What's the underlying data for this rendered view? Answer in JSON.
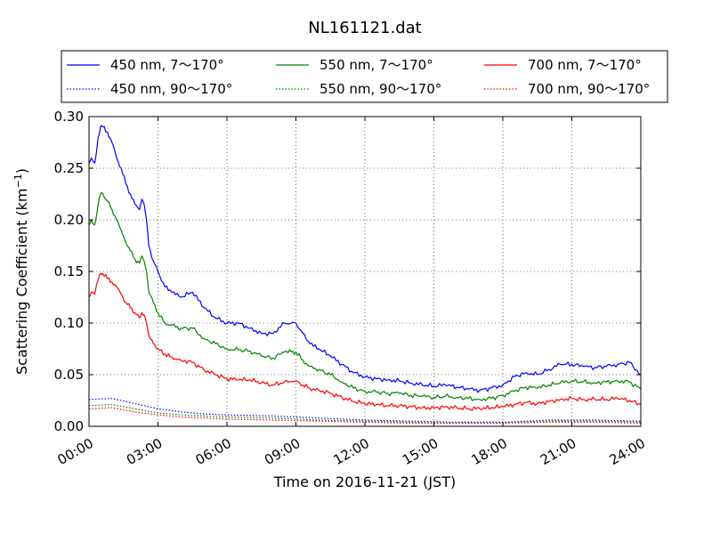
{
  "chart_data": {
    "type": "line",
    "title": "NL161121.dat",
    "xlabel": "Time on 2016-11-21 (JST)",
    "ylabel": "Scattering Coefficient (km",
    "ylabel_sup": "−1",
    "ylabel_close": ")",
    "xlim": [
      0,
      24
    ],
    "ylim": [
      0,
      0.3
    ],
    "grid": true,
    "legend_position": "top, outside plot (3 columns)",
    "x_ticks": [
      0,
      3,
      6,
      9,
      12,
      15,
      18,
      21,
      24
    ],
    "x_tick_labels": [
      "00:00",
      "03:00",
      "06:00",
      "09:00",
      "12:00",
      "15:00",
      "18:00",
      "21:00",
      "24:00"
    ],
    "y_ticks": [
      0,
      0.05,
      0.1,
      0.15,
      0.2,
      0.25,
      0.3
    ],
    "y_tick_labels": [
      "0.00",
      "0.05",
      "0.10",
      "0.15",
      "0.20",
      "0.25",
      "0.30"
    ],
    "x_unit": "hours since 00:00 JST",
    "series": [
      {
        "name": "450 nm, 7～170°",
        "color": "#0000ff",
        "style": "solid",
        "x": [
          0,
          0.1,
          0.25,
          0.4,
          0.5,
          0.6,
          0.8,
          1.0,
          1.2,
          1.4,
          1.6,
          1.8,
          2.0,
          2.2,
          2.3,
          2.4,
          2.5,
          2.6,
          2.8,
          3.0,
          3.3,
          3.6,
          4.0,
          4.5,
          5.0,
          5.5,
          6.0,
          6.5,
          7.0,
          7.5,
          8.0,
          8.5,
          8.8,
          9.0,
          9.3,
          9.6,
          10.0,
          10.5,
          11.0,
          11.5,
          12.0,
          12.5,
          13.0,
          13.5,
          14.0,
          14.5,
          15.0,
          15.5,
          16.0,
          16.5,
          17.0,
          17.5,
          18.0,
          18.5,
          19.0,
          19.5,
          20.0,
          20.5,
          21.0,
          21.5,
          22.0,
          22.5,
          23.0,
          23.5,
          24.0
        ],
        "y": [
          0.255,
          0.26,
          0.255,
          0.28,
          0.29,
          0.29,
          0.285,
          0.275,
          0.26,
          0.25,
          0.235,
          0.225,
          0.215,
          0.21,
          0.22,
          0.215,
          0.2,
          0.175,
          0.16,
          0.15,
          0.135,
          0.13,
          0.125,
          0.13,
          0.115,
          0.105,
          0.1,
          0.1,
          0.095,
          0.09,
          0.09,
          0.1,
          0.1,
          0.1,
          0.09,
          0.08,
          0.075,
          0.068,
          0.06,
          0.052,
          0.048,
          0.046,
          0.045,
          0.044,
          0.042,
          0.04,
          0.039,
          0.04,
          0.038,
          0.036,
          0.035,
          0.037,
          0.04,
          0.048,
          0.052,
          0.05,
          0.055,
          0.06,
          0.06,
          0.058,
          0.057,
          0.058,
          0.06,
          0.062,
          0.05
        ]
      },
      {
        "name": "450 nm, 90～170°",
        "color": "#0000ff",
        "style": "dotted",
        "x": [
          0,
          1,
          2,
          3,
          4,
          5,
          6,
          8,
          10,
          12,
          14,
          16,
          18,
          20,
          22,
          24
        ],
        "y": [
          0.026,
          0.027,
          0.022,
          0.017,
          0.014,
          0.012,
          0.011,
          0.01,
          0.008,
          0.006,
          0.005,
          0.004,
          0.004,
          0.006,
          0.006,
          0.005
        ]
      },
      {
        "name": "550 nm, 7～170°",
        "color": "#008000",
        "style": "solid",
        "x": [
          0,
          0.1,
          0.25,
          0.4,
          0.5,
          0.6,
          0.8,
          1.0,
          1.2,
          1.4,
          1.6,
          1.8,
          2.0,
          2.2,
          2.3,
          2.4,
          2.5,
          2.6,
          2.8,
          3.0,
          3.3,
          3.6,
          4.0,
          4.5,
          5.0,
          5.5,
          6.0,
          6.5,
          7.0,
          7.5,
          8.0,
          8.5,
          8.8,
          9.0,
          9.3,
          9.6,
          10.0,
          10.5,
          11.0,
          11.5,
          12.0,
          12.5,
          13.0,
          13.5,
          14.0,
          14.5,
          15.0,
          15.5,
          16.0,
          16.5,
          17.0,
          17.5,
          18.0,
          18.5,
          19.0,
          19.5,
          20.0,
          20.5,
          21.0,
          21.5,
          22.0,
          22.5,
          23.0,
          23.5,
          24.0
        ],
        "y": [
          0.195,
          0.2,
          0.195,
          0.215,
          0.225,
          0.225,
          0.218,
          0.21,
          0.2,
          0.19,
          0.178,
          0.17,
          0.162,
          0.158,
          0.165,
          0.16,
          0.15,
          0.13,
          0.12,
          0.11,
          0.1,
          0.098,
          0.095,
          0.095,
          0.085,
          0.08,
          0.075,
          0.074,
          0.073,
          0.068,
          0.066,
          0.072,
          0.072,
          0.072,
          0.064,
          0.058,
          0.055,
          0.05,
          0.043,
          0.037,
          0.034,
          0.033,
          0.032,
          0.032,
          0.03,
          0.029,
          0.028,
          0.029,
          0.028,
          0.027,
          0.026,
          0.027,
          0.03,
          0.034,
          0.038,
          0.037,
          0.04,
          0.042,
          0.044,
          0.043,
          0.042,
          0.043,
          0.044,
          0.043,
          0.036
        ]
      },
      {
        "name": "550 nm, 90～170°",
        "color": "#008000",
        "style": "dotted",
        "x": [
          0,
          1,
          2,
          3,
          4,
          5,
          6,
          8,
          10,
          12,
          14,
          16,
          18,
          20,
          22,
          24
        ],
        "y": [
          0.02,
          0.021,
          0.017,
          0.013,
          0.011,
          0.01,
          0.009,
          0.008,
          0.006,
          0.005,
          0.004,
          0.003,
          0.003,
          0.005,
          0.005,
          0.004
        ]
      },
      {
        "name": "700 nm, 7～170°",
        "color": "#ff0000",
        "style": "solid",
        "x": [
          0,
          0.1,
          0.25,
          0.4,
          0.5,
          0.6,
          0.8,
          1.0,
          1.2,
          1.4,
          1.6,
          1.8,
          2.0,
          2.2,
          2.3,
          2.4,
          2.5,
          2.6,
          2.8,
          3.0,
          3.3,
          3.6,
          4.0,
          4.5,
          5.0,
          5.5,
          6.0,
          6.5,
          7.0,
          7.5,
          8.0,
          8.5,
          8.8,
          9.0,
          9.3,
          9.6,
          10.0,
          10.5,
          11.0,
          11.5,
          12.0,
          12.5,
          13.0,
          13.5,
          14.0,
          14.5,
          15.0,
          15.5,
          16.0,
          16.5,
          17.0,
          17.5,
          18.0,
          18.5,
          19.0,
          19.5,
          20.0,
          20.5,
          21.0,
          21.5,
          22.0,
          22.5,
          23.0,
          23.5,
          24.0
        ],
        "y": [
          0.125,
          0.13,
          0.128,
          0.142,
          0.148,
          0.148,
          0.143,
          0.14,
          0.135,
          0.128,
          0.12,
          0.115,
          0.11,
          0.105,
          0.11,
          0.108,
          0.1,
          0.088,
          0.08,
          0.075,
          0.07,
          0.067,
          0.064,
          0.062,
          0.055,
          0.05,
          0.046,
          0.045,
          0.045,
          0.042,
          0.04,
          0.043,
          0.043,
          0.044,
          0.04,
          0.037,
          0.035,
          0.032,
          0.028,
          0.024,
          0.022,
          0.021,
          0.02,
          0.02,
          0.019,
          0.018,
          0.018,
          0.019,
          0.018,
          0.017,
          0.017,
          0.018,
          0.019,
          0.021,
          0.023,
          0.022,
          0.024,
          0.026,
          0.027,
          0.026,
          0.026,
          0.026,
          0.027,
          0.025,
          0.021
        ]
      },
      {
        "name": "700 nm, 90～170°",
        "color": "#ff0000",
        "style": "dotted",
        "x": [
          0,
          1,
          2,
          3,
          4,
          5,
          6,
          8,
          10,
          12,
          14,
          16,
          18,
          20,
          22,
          24
        ],
        "y": [
          0.017,
          0.018,
          0.014,
          0.011,
          0.009,
          0.008,
          0.007,
          0.006,
          0.005,
          0.004,
          0.003,
          0.003,
          0.003,
          0.004,
          0.004,
          0.003
        ]
      }
    ]
  }
}
